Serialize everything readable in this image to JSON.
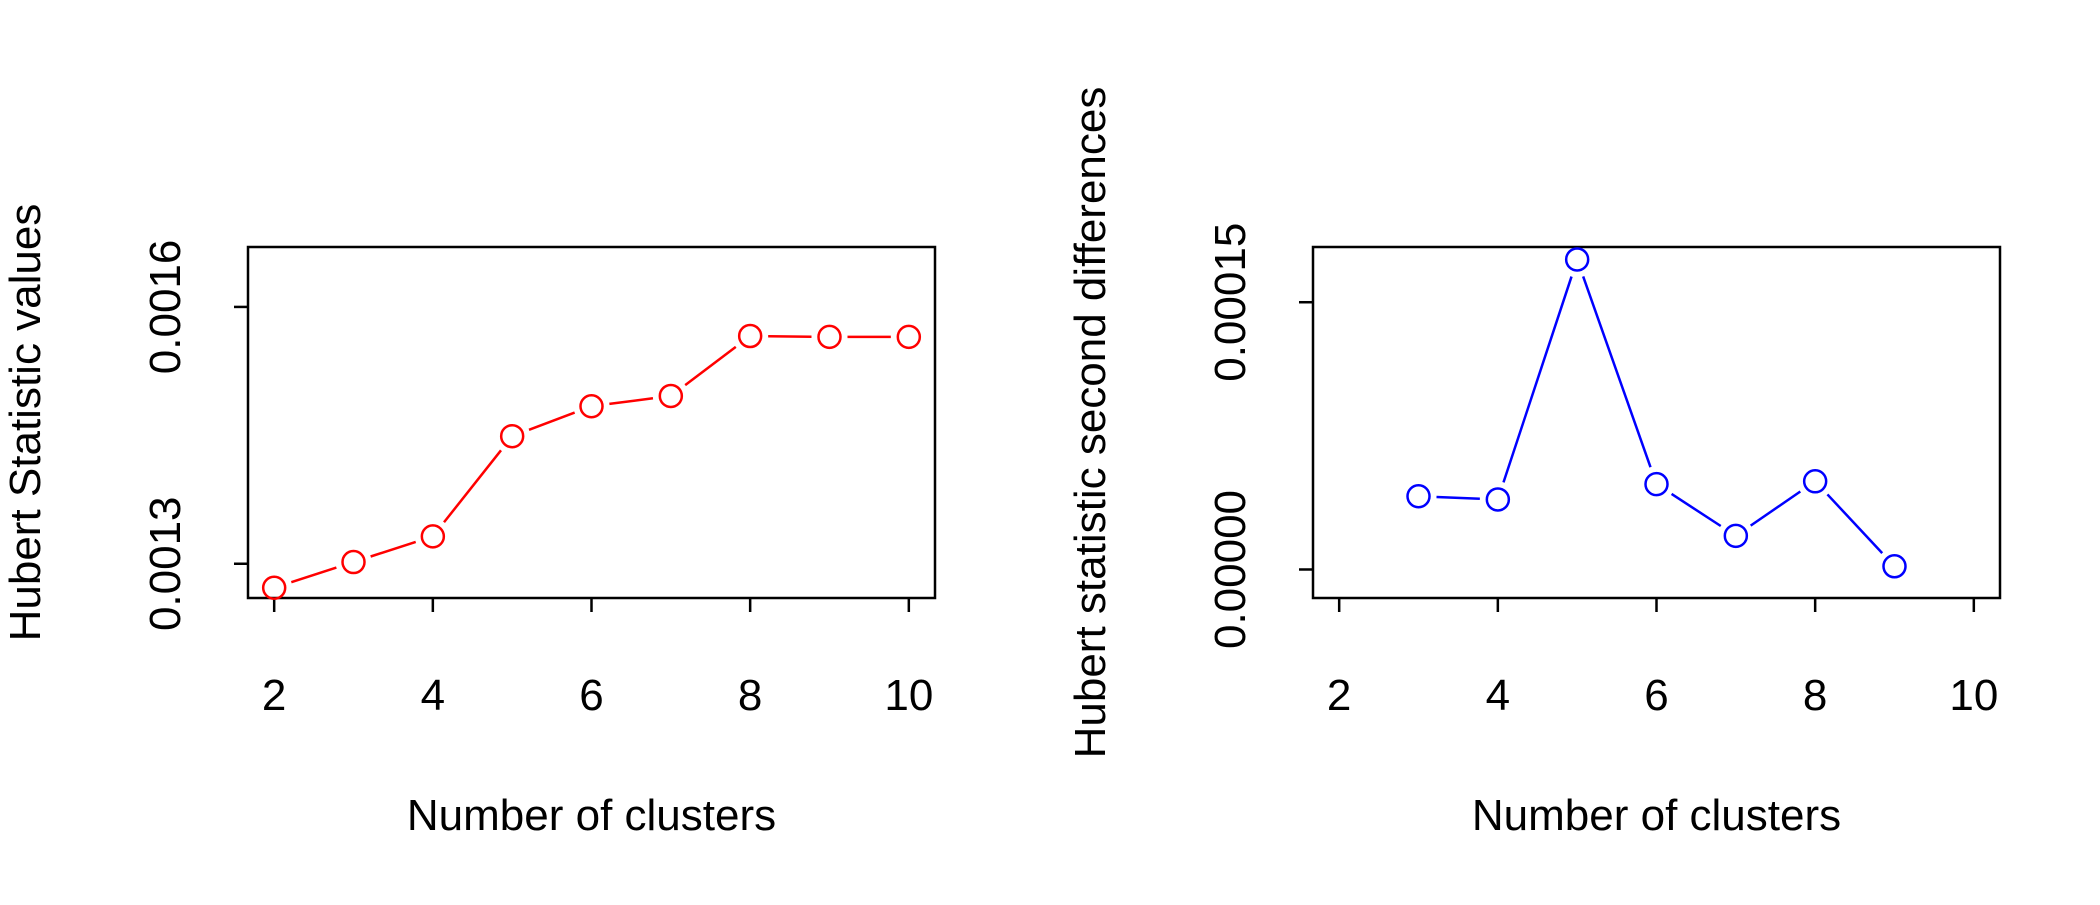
{
  "chart_data": [
    {
      "type": "line",
      "title": "",
      "xlabel": "Number of clusters",
      "ylabel": "Hubert Statistic values",
      "xlim": [
        1.67,
        10.33
      ],
      "ylim": [
        0.00126,
        0.00167
      ],
      "x_ticks": [
        "2",
        "4",
        "6",
        "8",
        "10"
      ],
      "y_ticks": [
        "0.0013",
        "0.0016"
      ],
      "color": "#ff0000",
      "grid": false,
      "series": [
        {
          "x": [
            2,
            3,
            4,
            5,
            6,
            7,
            8,
            9,
            10
          ],
          "values": [
            0.001272,
            0.001302,
            0.001332,
            0.001449,
            0.001484,
            0.001496,
            0.001566,
            0.001565,
            0.001565
          ]
        }
      ]
    },
    {
      "type": "line",
      "title": "",
      "xlabel": "Number of clusters",
      "ylabel": "Hubert statistic second differences",
      "xlim": [
        1.67,
        10.33
      ],
      "ylim": [
        -1.6e-05,
        0.000181
      ],
      "x_ticks": [
        "2",
        "4",
        "6",
        "8",
        "10"
      ],
      "y_ticks": [
        "0.00000",
        "0.00015"
      ],
      "color": "#0000ff",
      "grid": false,
      "series": [
        {
          "x": [
            3,
            4,
            5,
            6,
            7,
            8,
            9
          ],
          "values": [
            4.11e-05,
            3.93e-05,
            0.000174,
            4.79e-05,
            1.89e-05,
            4.95e-05,
            1.8e-06
          ]
        }
      ]
    }
  ]
}
